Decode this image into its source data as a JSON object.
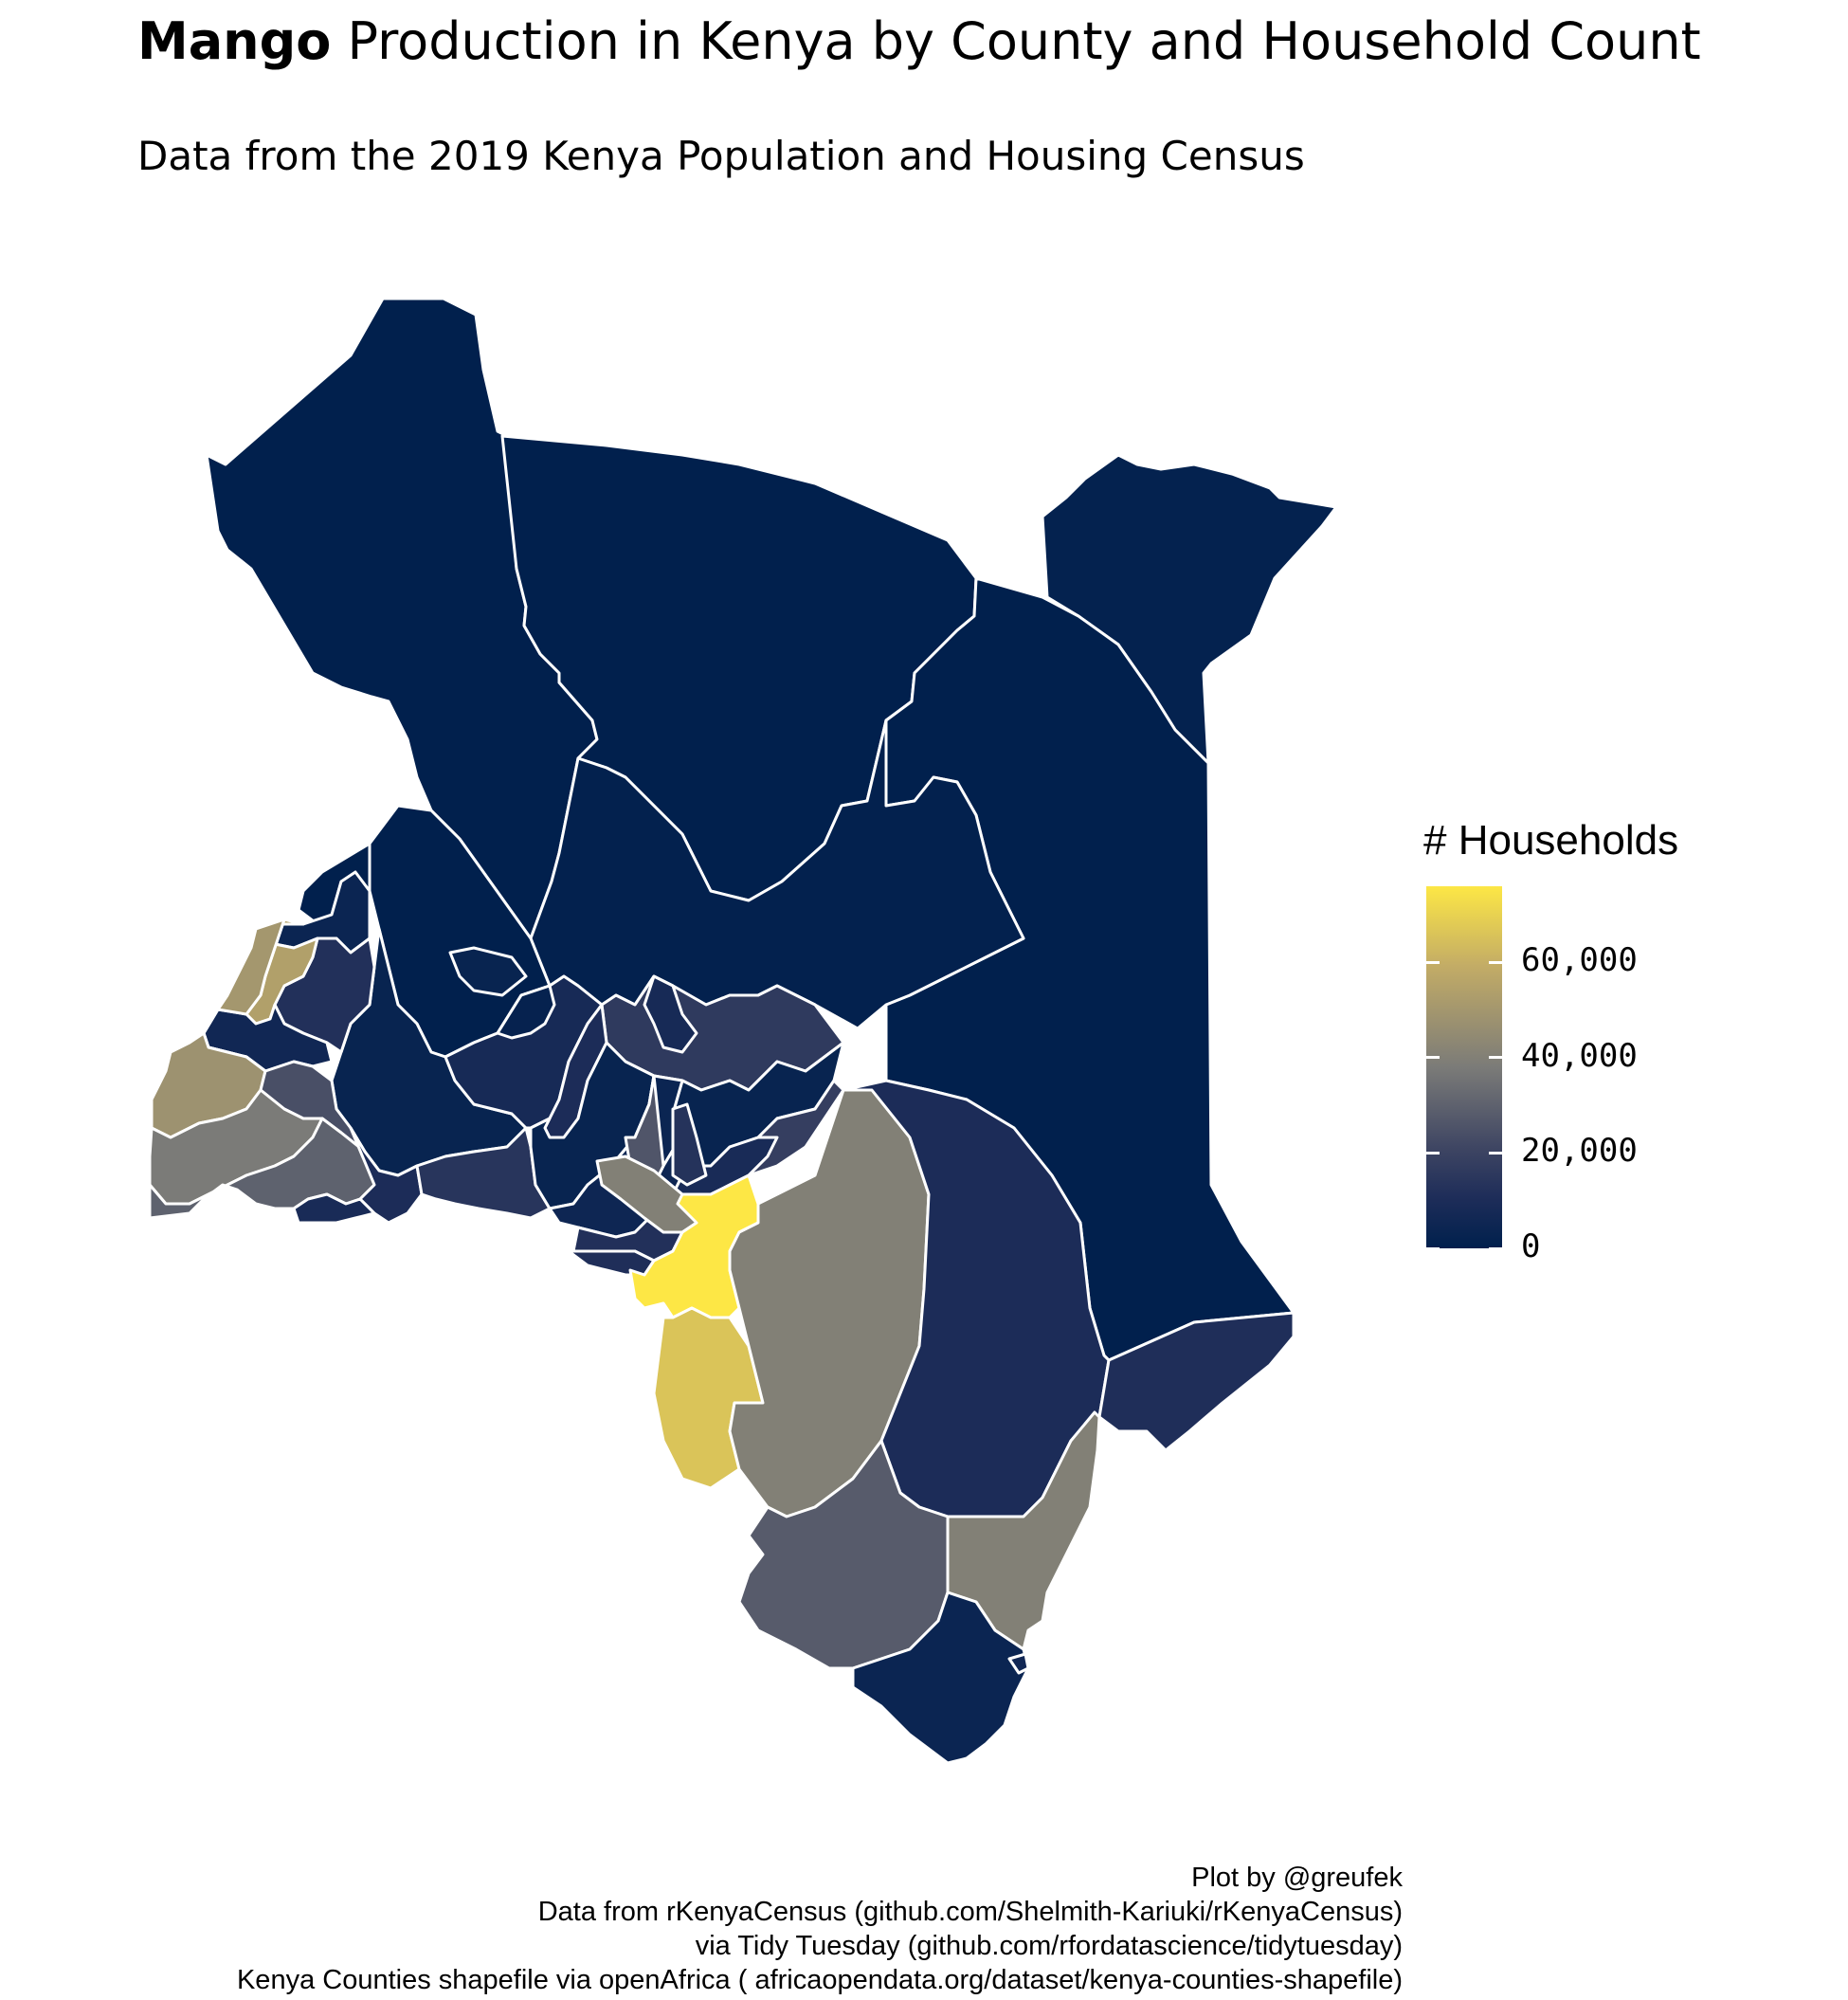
{
  "title": {
    "bold": "Mango",
    "rest": " Production in Kenya by County and Household Count"
  },
  "subtitle": "Data from the 2019 Kenya Population and Housing Census",
  "legend": {
    "title": "# Households",
    "ticks": [
      {
        "value": 60000,
        "label": "60,000"
      },
      {
        "value": 40000,
        "label": "40,000"
      },
      {
        "value": 20000,
        "label": "20,000"
      },
      {
        "value": 0,
        "label": "0"
      }
    ],
    "scale_max": 76000,
    "palette": [
      "#00204D",
      "#1E2D59",
      "#3F4663",
      "#7B7B78",
      "#C3AC66",
      "#FDE745"
    ]
  },
  "caption": [
    "Plot by @greufek",
    "Data from rKenyaCensus (github.com/Shelmith-Kariuki/rKenyaCensus)",
    "via Tidy Tuesday (github.com/rfordatascience/tidytuesday)",
    "Kenya Counties shapefile via openAfrica ( africaopendata.org/dataset/kenya-counties-shapefile)"
  ],
  "chart_data": {
    "type": "choropleth",
    "variable": "Mango",
    "legend_title": "# Households",
    "value_range": [
      0,
      76000
    ],
    "regions": [
      {
        "value": 300
      },
      {
        "value": 200
      },
      {
        "value": 1500
      },
      {
        "value": 200
      },
      {
        "value": 1200
      },
      {
        "value": 300
      },
      {
        "value": 400
      },
      {
        "value": 3000
      },
      {
        "value": 8000
      },
      {
        "value": 16000
      },
      {
        "value": 4000
      },
      {
        "value": 12000
      },
      {
        "value": 54000
      },
      {
        "value": 6000
      },
      {
        "value": 50000
      },
      {
        "value": 40000
      },
      {
        "value": 48000
      },
      {
        "value": 24000
      },
      {
        "value": 38000
      },
      {
        "value": 30000
      },
      {
        "value": 10000
      },
      {
        "value": 9000
      },
      {
        "value": 14000
      },
      {
        "value": 10000
      },
      {
        "value": 3000
      },
      {
        "value": 3000
      },
      {
        "value": 4000
      },
      {
        "value": 5000
      },
      {
        "value": 26000
      },
      {
        "value": 9000
      },
      {
        "value": 13000
      },
      {
        "value": 18000
      },
      {
        "value": 12000
      },
      {
        "value": 40000
      },
      {
        "value": 11000
      },
      {
        "value": 76000
      },
      {
        "value": 66000
      },
      {
        "value": 40000
      },
      {
        "value": 10000
      },
      {
        "value": 11000
      },
      {
        "value": 40000
      },
      {
        "value": 28000
      },
      {
        "value": 4000
      },
      {
        "value": 6000
      },
      {
        "value": 2000
      },
      {
        "value": 3000
      },
      {
        "value": 8000
      }
    ]
  }
}
